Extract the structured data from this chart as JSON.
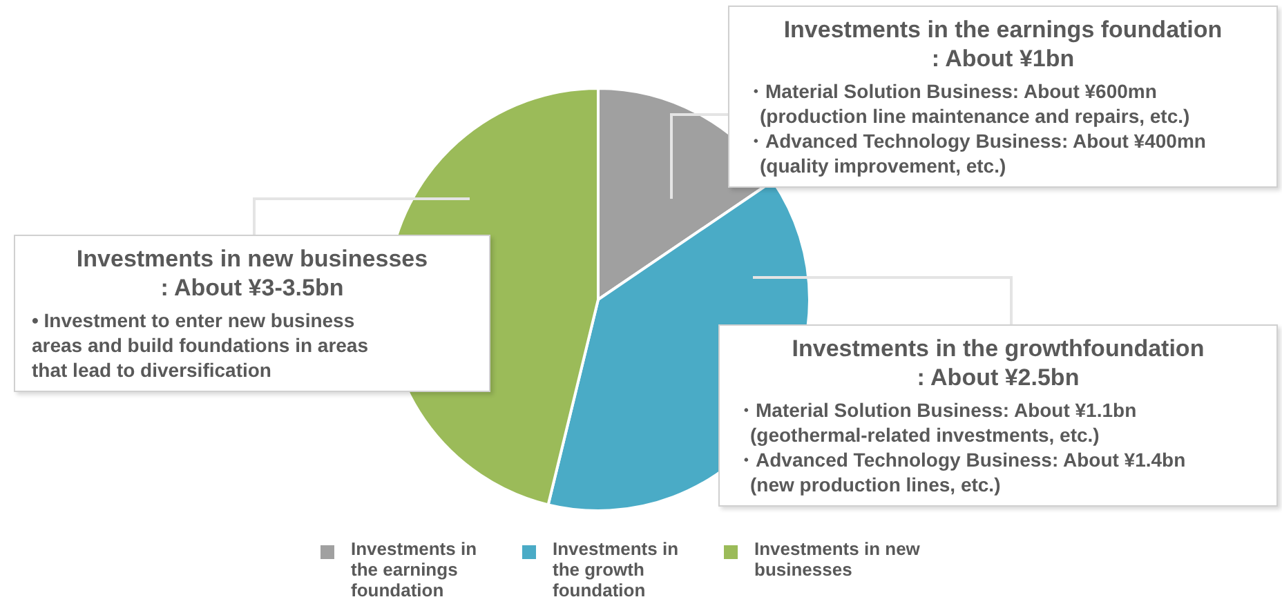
{
  "chart_data": {
    "type": "pie",
    "categories": [
      "Investments in the earnings foundation",
      "Investments in the growth foundation",
      "Investments in new businesses"
    ],
    "values": [
      15.5,
      38.3,
      46.2
    ],
    "colors": [
      "#a0a0a0",
      "#4aabc6",
      "#9bbb59"
    ],
    "legend": "bottom",
    "annotations": [
      "Investments in the earnings foundation",
      ": About ¥1bn",
      "・Material Solution Business: About ¥600mn",
      "(production line maintenance and repairs, etc.)",
      "・Advanced Technology Business: About ¥400mn",
      "(quality improvement, etc.)",
      "Investments in new businesses",
      ": About ¥3-3.5bn",
      "• Investment to enter new business",
      "areas and build foundations in areas",
      "that lead to diversification",
      "Investments in the growthfoundation",
      ": About ¥2.5bn",
      "・Material Solution Business: About ¥1.1bn",
      "(geothermal-related investments, etc.)",
      "・Advanced Technology Business: About ¥1.4bn",
      "(new production lines, etc.)"
    ]
  }
}
